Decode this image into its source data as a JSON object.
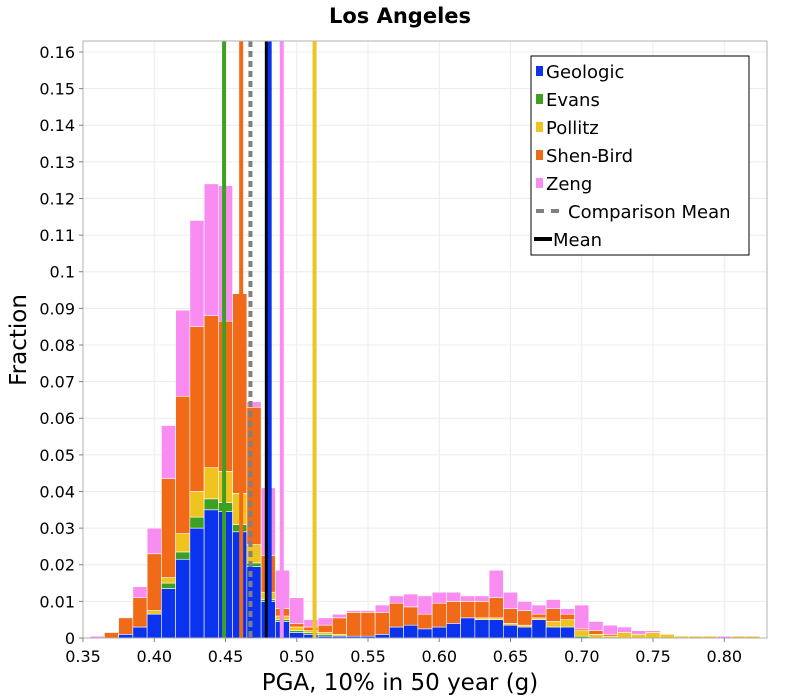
{
  "chart_data": {
    "type": "bar",
    "title": "Los Angeles",
    "xlabel": "PGA, 10% in 50 year (g)",
    "ylabel": "Fraction",
    "xlim": [
      0.35,
      0.83
    ],
    "ylim": [
      0,
      0.163
    ],
    "bin_width": 0.01,
    "stacked": true,
    "x_ticks": [
      0.35,
      0.4,
      0.45,
      0.5,
      0.55,
      0.6,
      0.65,
      0.7,
      0.75,
      0.8
    ],
    "x_tick_labels": [
      "0.35",
      "0.40",
      "0.45",
      "0.50",
      "0.55",
      "0.60",
      "0.65",
      "0.70",
      "0.75",
      "0.80"
    ],
    "y_ticks": [
      0,
      0.01,
      0.02,
      0.03,
      0.04,
      0.05,
      0.06,
      0.07,
      0.08,
      0.09,
      0.1,
      0.11,
      0.12,
      0.13,
      0.14,
      0.15,
      0.16
    ],
    "y_tick_labels": [
      "0",
      "0.01",
      "0.02",
      "0.03",
      "0.04",
      "0.05",
      "0.06",
      "0.07",
      "0.08",
      "0.09",
      "0.1",
      "0.11",
      "0.12",
      "0.13",
      "0.14",
      "0.15",
      "0.16"
    ],
    "grid": true,
    "legend_position": "top-right",
    "bin_starts": [
      0.355,
      0.365,
      0.375,
      0.385,
      0.395,
      0.405,
      0.415,
      0.425,
      0.435,
      0.445,
      0.455,
      0.465,
      0.475,
      0.485,
      0.495,
      0.505,
      0.515,
      0.525,
      0.535,
      0.545,
      0.555,
      0.565,
      0.575,
      0.585,
      0.595,
      0.605,
      0.615,
      0.625,
      0.635,
      0.645,
      0.655,
      0.665,
      0.675,
      0.685,
      0.695,
      0.705,
      0.715,
      0.725,
      0.735,
      0.745,
      0.755,
      0.765,
      0.775,
      0.785,
      0.795,
      0.805,
      0.815
    ],
    "series": [
      {
        "name": "Geologic",
        "color": "#0b33ee",
        "values": [
          0,
          0,
          0.001,
          0.003,
          0.0065,
          0.0135,
          0.0215,
          0.03,
          0.035,
          0.0345,
          0.029,
          0.0195,
          0.01,
          0.0045,
          0.0015,
          0.001,
          0.0005,
          0.0005,
          0.0005,
          0.0005,
          0.001,
          0.003,
          0.0035,
          0.0025,
          0.003,
          0.004,
          0.0055,
          0.005,
          0.005,
          0.0035,
          0.003,
          0.005,
          0.003,
          0.003,
          0,
          0,
          0,
          0,
          0,
          0,
          0,
          0,
          0,
          0,
          0,
          0,
          0
        ]
      },
      {
        "name": "Evans",
        "color": "#3ea022",
        "values": [
          0,
          0,
          0,
          0,
          0,
          0.0015,
          0.002,
          0.003,
          0.003,
          0.0025,
          0.002,
          0.001,
          0.0005,
          0.0005,
          0.0005,
          0.0005,
          0.0005,
          0,
          0,
          0,
          0,
          0,
          0,
          0,
          0,
          0,
          0,
          0,
          0,
          0,
          0,
          0,
          0,
          0,
          0.0005,
          0,
          0,
          0,
          0,
          0,
          0,
          0,
          0,
          0,
          0,
          0,
          0
        ]
      },
      {
        "name": "Pollitz",
        "color": "#f0c420",
        "values": [
          0,
          0,
          0,
          0,
          0.001,
          0.0015,
          0.005,
          0.007,
          0.0085,
          0.0085,
          0.0085,
          0.005,
          0.002,
          0.001,
          0.001,
          0.0005,
          0.0005,
          0.0005,
          0,
          0,
          0,
          0,
          0,
          0,
          0,
          0,
          0,
          0.0005,
          0.0005,
          0.0005,
          0.0005,
          0.0005,
          0.0015,
          0.002,
          0.0015,
          0.001,
          0.0005,
          0.0015,
          0.001,
          0.0015,
          0.001,
          0.0005,
          0.0005,
          0.0005,
          0,
          0.0005,
          0.0005
        ]
      },
      {
        "name": "Shen-Bird",
        "color": "#f06a18",
        "values": [
          0,
          0.0015,
          0.0045,
          0.008,
          0.0155,
          0.027,
          0.0375,
          0.045,
          0.0415,
          0.041,
          0.0545,
          0.0375,
          0.01,
          0.002,
          0.001,
          0.001,
          0.002,
          0.0045,
          0.0065,
          0.0065,
          0.006,
          0.0065,
          0.005,
          0.004,
          0.0065,
          0.006,
          0.0045,
          0.0045,
          0.0055,
          0.004,
          0.004,
          0.001,
          0.0035,
          0.0015,
          0.0005,
          0.001,
          0.0005,
          0,
          0,
          0,
          0,
          0,
          0,
          0,
          0,
          0,
          0
        ]
      },
      {
        "name": "Zeng",
        "color": "#f98cf0",
        "values": [
          0.0005,
          0,
          0,
          0.003,
          0.007,
          0.0145,
          0.0235,
          0.029,
          0.036,
          0.037,
          0,
          0.0015,
          0.0185,
          0.0105,
          0.007,
          0.002,
          0.002,
          0.001,
          0.0005,
          0.0005,
          0.002,
          0.002,
          0.0035,
          0.005,
          0.003,
          0.0025,
          0.0015,
          0.0015,
          0.0075,
          0.0045,
          0.0025,
          0.0025,
          0.0025,
          0.0015,
          0.0065,
          0.0025,
          0.0025,
          0.0015,
          0.001,
          0.0005,
          0,
          0,
          0,
          0,
          0.0005,
          0,
          0
        ]
      }
    ],
    "reference_lines": [
      {
        "name": "Evans",
        "x": 0.449,
        "color": "#3ea022",
        "style": "solid"
      },
      {
        "name": "Shen-Bird",
        "x": 0.461,
        "color": "#f06a18",
        "style": "solid"
      },
      {
        "name": "Comparison Mean",
        "x": 0.4675,
        "color": "#808080",
        "style": "dashed"
      },
      {
        "name": "Mean",
        "x": 0.479,
        "color": "#000000",
        "style": "solid"
      },
      {
        "name": "Geologic",
        "x": 0.481,
        "color": "#0b33ee",
        "style": "solid"
      },
      {
        "name": "Zeng",
        "x": 0.4895,
        "color": "#f98cf0",
        "style": "solid"
      },
      {
        "name": "Pollitz",
        "x": 0.5125,
        "color": "#f0c420",
        "style": "solid"
      }
    ],
    "legend": [
      {
        "label": "Geologic",
        "color": "#0b33ee",
        "kind": "square"
      },
      {
        "label": "Evans",
        "color": "#3ea022",
        "kind": "square"
      },
      {
        "label": "Pollitz",
        "color": "#f0c420",
        "kind": "square"
      },
      {
        "label": "Shen-Bird",
        "color": "#f06a18",
        "kind": "square"
      },
      {
        "label": "Zeng",
        "color": "#f98cf0",
        "kind": "square"
      },
      {
        "label": "Comparison Mean",
        "color": "#808080",
        "kind": "dashed-line"
      },
      {
        "label": "Mean",
        "color": "#000000",
        "kind": "line"
      }
    ]
  }
}
